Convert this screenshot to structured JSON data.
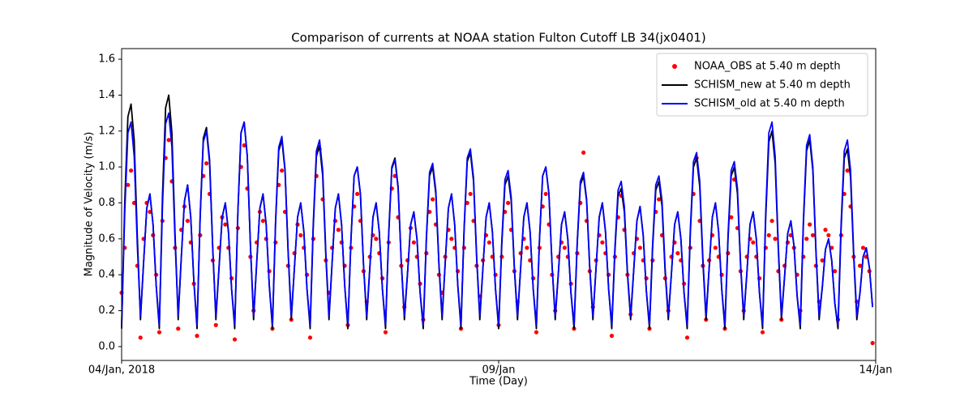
{
  "chart_data": {
    "type": "line",
    "title": "Comparison of currents at NOAA station Fulton Cutoff LB 34(jx0401)",
    "xlabel": "Time (Day)",
    "ylabel": "Magnitude of Velocity (m/s)",
    "xlim": [
      0,
      240
    ],
    "xticks": [
      {
        "value": 0,
        "label": "04/Jan, 2018"
      },
      {
        "value": 120,
        "label": "09/Jan"
      },
      {
        "value": 240,
        "label": "14/Jan"
      }
    ],
    "ylim": [
      -0.077,
      1.659
    ],
    "yticks": [
      {
        "value": 0,
        "label": "0.0"
      },
      0.2,
      0.4,
      0.6,
      0.8,
      {
        "value": 1,
        "label": "1.0"
      },
      1.2,
      1.4,
      1.6
    ],
    "grid": false,
    "legend_loc": "upper right",
    "x": [
      0,
      1,
      2,
      3,
      4,
      5,
      6,
      7,
      8,
      9,
      10,
      11,
      12,
      13,
      14,
      15,
      16,
      17,
      18,
      19,
      20,
      21,
      22,
      23,
      24,
      25,
      26,
      27,
      28,
      29,
      30,
      31,
      32,
      33,
      34,
      35,
      36,
      37,
      38,
      39,
      40,
      41,
      42,
      43,
      44,
      45,
      46,
      47,
      48,
      49,
      50,
      51,
      52,
      53,
      54,
      55,
      56,
      57,
      58,
      59,
      60,
      61,
      62,
      63,
      64,
      65,
      66,
      67,
      68,
      69,
      70,
      71,
      72,
      73,
      74,
      75,
      76,
      77,
      78,
      79,
      80,
      81,
      82,
      83,
      84,
      85,
      86,
      87,
      88,
      89,
      90,
      91,
      92,
      93,
      94,
      95,
      96,
      97,
      98,
      99,
      100,
      101,
      102,
      103,
      104,
      105,
      106,
      107,
      108,
      109,
      110,
      111,
      112,
      113,
      114,
      115,
      116,
      117,
      118,
      119,
      120,
      121,
      122,
      123,
      124,
      125,
      126,
      127,
      128,
      129,
      130,
      131,
      132,
      133,
      134,
      135,
      136,
      137,
      138,
      139,
      140,
      141,
      142,
      143,
      144,
      145,
      146,
      147,
      148,
      149,
      150,
      151,
      152,
      153,
      154,
      155,
      156,
      157,
      158,
      159,
      160,
      161,
      162,
      163,
      164,
      165,
      166,
      167,
      168,
      169,
      170,
      171,
      172,
      173,
      174,
      175,
      176,
      177,
      178,
      179,
      180,
      181,
      182,
      183,
      184,
      185,
      186,
      187,
      188,
      189,
      190,
      191,
      192,
      193,
      194,
      195,
      196,
      197,
      198,
      199,
      200,
      201,
      202,
      203,
      204,
      205,
      206,
      207,
      208,
      209,
      210,
      211,
      212,
      213,
      214,
      215,
      216,
      217,
      218,
      219,
      220,
      221,
      222,
      223,
      224,
      225,
      226,
      227,
      228,
      229,
      230,
      231,
      232,
      233,
      234,
      235,
      236,
      237,
      238,
      239
    ],
    "series": [
      {
        "name": "NOAA_OBS at 5.40 m depth",
        "color": "#ff0000",
        "style": "markers",
        "values": [
          0.3,
          0.55,
          0.9,
          0.98,
          0.8,
          0.45,
          0.05,
          0.6,
          0.8,
          0.75,
          0.62,
          0.4,
          0.08,
          0.7,
          1.05,
          1.15,
          0.92,
          0.55,
          0.1,
          0.65,
          0.78,
          0.7,
          0.58,
          0.35,
          0.06,
          0.62,
          0.95,
          1.02,
          0.85,
          0.48,
          0.12,
          0.55,
          0.72,
          0.68,
          0.55,
          0.38,
          0.04,
          0.66,
          1.0,
          1.12,
          0.88,
          0.5,
          0.2,
          0.58,
          0.75,
          0.7,
          0.6,
          0.42,
          0.1,
          0.58,
          0.9,
          0.98,
          0.75,
          0.45,
          0.15,
          0.52,
          0.68,
          0.62,
          0.55,
          0.4,
          0.05,
          0.6,
          0.95,
          1.1,
          0.82,
          0.48,
          0.3,
          0.55,
          0.7,
          0.65,
          0.58,
          0.45,
          0.12,
          0.55,
          0.78,
          0.85,
          0.7,
          0.42,
          0.25,
          0.5,
          0.62,
          0.6,
          0.52,
          0.38,
          0.08,
          0.58,
          0.88,
          0.95,
          0.72,
          0.45,
          0.22,
          0.48,
          0.66,
          0.58,
          0.5,
          0.35,
          0.15,
          0.52,
          0.75,
          0.82,
          0.68,
          0.4,
          0.3,
          0.5,
          0.65,
          0.6,
          0.55,
          0.42,
          0.1,
          0.55,
          0.8,
          0.85,
          0.7,
          0.45,
          0.28,
          0.48,
          0.62,
          0.58,
          0.5,
          0.4,
          0.12,
          0.5,
          0.75,
          0.8,
          0.65,
          0.42,
          0.25,
          0.52,
          0.6,
          0.55,
          0.48,
          0.38,
          0.08,
          0.55,
          0.78,
          0.85,
          0.68,
          0.4,
          0.2,
          0.5,
          0.58,
          0.55,
          0.5,
          0.35,
          0.1,
          0.52,
          0.8,
          1.08,
          0.7,
          0.42,
          0.22,
          0.48,
          0.62,
          0.58,
          0.52,
          0.4,
          0.06,
          0.5,
          0.72,
          0.84,
          0.65,
          0.4,
          0.18,
          0.52,
          0.6,
          0.55,
          0.48,
          0.38,
          0.1,
          0.48,
          0.75,
          0.82,
          0.62,
          0.38,
          0.2,
          0.5,
          0.58,
          0.52,
          0.48,
          0.35,
          0.05,
          0.55,
          0.85,
          1.05,
          0.7,
          0.45,
          0.15,
          0.48,
          0.62,
          0.55,
          0.5,
          0.4,
          0.1,
          0.52,
          0.72,
          0.93,
          0.66,
          0.42,
          0.2,
          0.5,
          0.6,
          0.58,
          0.5,
          0.38,
          0.08,
          0.55,
          0.62,
          0.7,
          0.6,
          0.42,
          0.15,
          0.45,
          0.58,
          0.62,
          0.55,
          0.4,
          0.2,
          0.5,
          0.6,
          0.68,
          0.62,
          0.45,
          0.25,
          0.48,
          0.65,
          0.62,
          0.55,
          0.42,
          0.15,
          0.62,
          0.85,
          0.98,
          0.78,
          0.5,
          0.25,
          0.45,
          0.55,
          0.5,
          0.42,
          0.02
        ]
      },
      {
        "name": "SCHISM_new at 5.40 m depth",
        "color": "#000000",
        "style": "line",
        "values": [
          0.1,
          0.81,
          1.28,
          1.35,
          1.15,
          0.61,
          0.15,
          0.47,
          0.77,
          0.85,
          0.68,
          0.34,
          0.1,
          0.84,
          1.33,
          1.4,
          1.19,
          0.63,
          0.15,
          0.5,
          0.81,
          0.9,
          0.72,
          0.36,
          0.1,
          0.73,
          1.16,
          1.22,
          1.04,
          0.55,
          0.15,
          0.44,
          0.72,
          0.8,
          0.64,
          0.32,
          0.1,
          0.75,
          1.19,
          1.25,
          1.06,
          0.56,
          0.15,
          0.47,
          0.77,
          0.85,
          0.68,
          0.34,
          0.1,
          0.69,
          1.09,
          1.15,
          0.98,
          0.52,
          0.15,
          0.44,
          0.72,
          0.8,
          0.64,
          0.32,
          0.1,
          0.67,
          1.06,
          1.12,
          0.95,
          0.5,
          0.15,
          0.47,
          0.77,
          0.85,
          0.68,
          0.34,
          0.1,
          0.6,
          0.95,
          1.0,
          0.85,
          0.45,
          0.15,
          0.44,
          0.72,
          0.8,
          0.64,
          0.32,
          0.1,
          0.63,
          1.0,
          1.05,
          0.89,
          0.47,
          0.15,
          0.41,
          0.68,
          0.75,
          0.6,
          0.3,
          0.1,
          0.6,
          0.95,
          1.0,
          0.85,
          0.45,
          0.15,
          0.47,
          0.77,
          0.85,
          0.68,
          0.34,
          0.1,
          0.65,
          1.03,
          1.08,
          0.92,
          0.49,
          0.15,
          0.44,
          0.72,
          0.8,
          0.64,
          0.32,
          0.1,
          0.57,
          0.9,
          0.95,
          0.81,
          0.43,
          0.15,
          0.44,
          0.72,
          0.8,
          0.64,
          0.32,
          0.1,
          0.6,
          0.95,
          1.0,
          0.85,
          0.45,
          0.15,
          0.41,
          0.68,
          0.75,
          0.6,
          0.3,
          0.1,
          0.57,
          0.9,
          0.95,
          0.81,
          0.43,
          0.15,
          0.44,
          0.72,
          0.8,
          0.64,
          0.32,
          0.1,
          0.53,
          0.84,
          0.88,
          0.75,
          0.4,
          0.15,
          0.43,
          0.7,
          0.78,
          0.62,
          0.31,
          0.1,
          0.55,
          0.87,
          0.92,
          0.78,
          0.41,
          0.15,
          0.41,
          0.68,
          0.75,
          0.6,
          0.3,
          0.1,
          0.63,
          1.0,
          1.05,
          0.89,
          0.47,
          0.15,
          0.44,
          0.72,
          0.8,
          0.64,
          0.32,
          0.1,
          0.6,
          0.95,
          1.0,
          0.85,
          0.45,
          0.15,
          0.41,
          0.68,
          0.75,
          0.6,
          0.3,
          0.1,
          0.72,
          1.14,
          1.2,
          1.02,
          0.54,
          0.15,
          0.39,
          0.63,
          0.7,
          0.56,
          0.28,
          0.1,
          0.69,
          1.09,
          1.15,
          0.98,
          0.52,
          0.15,
          0.33,
          0.54,
          0.6,
          0.48,
          0.24,
          0.1,
          0.66,
          1.05,
          1.1,
          0.94,
          0.5,
          0.15,
          0.3,
          0.5,
          0.55,
          0.44,
          0.22
        ]
      },
      {
        "name": "SCHISM_old at 5.40 m depth",
        "color": "#0000ff",
        "style": "line",
        "values": [
          0.12,
          0.75,
          1.19,
          1.25,
          1.06,
          0.56,
          0.17,
          0.47,
          0.77,
          0.85,
          0.68,
          0.34,
          0.12,
          0.78,
          1.24,
          1.3,
          1.11,
          0.59,
          0.17,
          0.5,
          0.81,
          0.9,
          0.72,
          0.36,
          0.12,
          0.72,
          1.14,
          1.2,
          1.02,
          0.54,
          0.17,
          0.44,
          0.72,
          0.8,
          0.64,
          0.32,
          0.12,
          0.75,
          1.19,
          1.25,
          1.06,
          0.56,
          0.17,
          0.47,
          0.77,
          0.85,
          0.68,
          0.34,
          0.12,
          0.7,
          1.11,
          1.17,
          0.99,
          0.53,
          0.17,
          0.44,
          0.72,
          0.8,
          0.64,
          0.32,
          0.12,
          0.69,
          1.09,
          1.15,
          0.98,
          0.52,
          0.17,
          0.47,
          0.77,
          0.85,
          0.68,
          0.34,
          0.12,
          0.6,
          0.95,
          1.0,
          0.85,
          0.45,
          0.17,
          0.44,
          0.72,
          0.8,
          0.64,
          0.32,
          0.12,
          0.62,
          0.99,
          1.04,
          0.88,
          0.47,
          0.17,
          0.41,
          0.68,
          0.75,
          0.6,
          0.3,
          0.12,
          0.61,
          0.97,
          1.02,
          0.87,
          0.46,
          0.17,
          0.47,
          0.77,
          0.85,
          0.68,
          0.34,
          0.12,
          0.66,
          1.05,
          1.1,
          0.94,
          0.5,
          0.17,
          0.44,
          0.72,
          0.8,
          0.64,
          0.32,
          0.12,
          0.59,
          0.93,
          0.98,
          0.83,
          0.44,
          0.17,
          0.44,
          0.72,
          0.8,
          0.64,
          0.32,
          0.12,
          0.6,
          0.95,
          1.0,
          0.85,
          0.45,
          0.17,
          0.41,
          0.68,
          0.75,
          0.6,
          0.3,
          0.12,
          0.58,
          0.92,
          0.97,
          0.82,
          0.44,
          0.17,
          0.44,
          0.72,
          0.8,
          0.64,
          0.32,
          0.12,
          0.55,
          0.87,
          0.92,
          0.78,
          0.41,
          0.17,
          0.43,
          0.7,
          0.78,
          0.62,
          0.31,
          0.12,
          0.57,
          0.9,
          0.95,
          0.81,
          0.43,
          0.17,
          0.41,
          0.68,
          0.75,
          0.6,
          0.3,
          0.12,
          0.65,
          1.03,
          1.08,
          0.92,
          0.49,
          0.17,
          0.44,
          0.72,
          0.8,
          0.64,
          0.32,
          0.12,
          0.62,
          0.98,
          1.03,
          0.88,
          0.46,
          0.17,
          0.41,
          0.68,
          0.75,
          0.6,
          0.3,
          0.12,
          0.75,
          1.19,
          1.25,
          1.06,
          0.56,
          0.17,
          0.39,
          0.63,
          0.7,
          0.56,
          0.28,
          0.12,
          0.71,
          1.12,
          1.18,
          1.0,
          0.53,
          0.17,
          0.33,
          0.54,
          0.6,
          0.48,
          0.24,
          0.12,
          0.69,
          1.09,
          1.15,
          0.98,
          0.52,
          0.17,
          0.3,
          0.5,
          0.55,
          0.44,
          0.22
        ]
      }
    ]
  }
}
